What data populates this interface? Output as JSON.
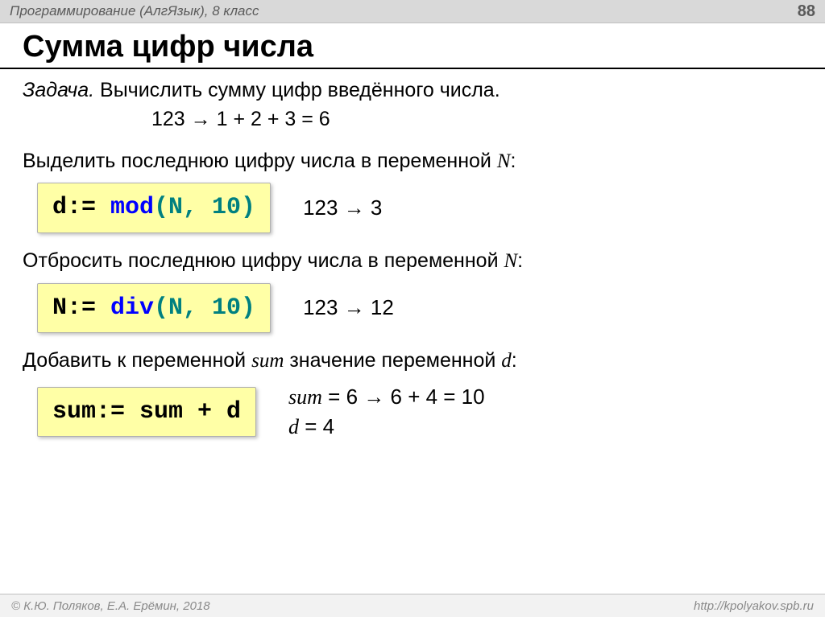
{
  "header": {
    "course": "Программирование (АлгЯзык), 8 класс",
    "page": "88"
  },
  "title": "Сумма цифр числа",
  "task": {
    "label": "Задача.",
    "text": " Вычислить сумму цифр введённого числа.",
    "example_lhs": "123 ",
    "example_rhs": " 1 + 2 + 3 = 6"
  },
  "steps": [
    {
      "text_before": "Выделить последнюю цифру числа в переменной ",
      "var": "N",
      "text_after": ":",
      "code_parts": {
        "lhs": "d:= ",
        "kw": "mod",
        "args": "(N, 10)"
      },
      "kw_color": "blue",
      "result_lhs": "123 ",
      "result_rhs": " 3"
    },
    {
      "text_before": "Отбросить последнюю цифру числа в переменной ",
      "var": "N",
      "text_after": ":",
      "code_parts": {
        "lhs": "N:= ",
        "kw": "div",
        "args": "(N, 10)"
      },
      "kw_color": "blue",
      "result_lhs": "123 ",
      "result_rhs": " 12"
    },
    {
      "text_before": "Добавить к переменной ",
      "var": "sum",
      "text_mid": " значение переменной ",
      "var2": "d",
      "text_after": ":",
      "code_parts": {
        "lhs": "sum:= sum + d",
        "kw": "",
        "args": ""
      },
      "kw_color": "none",
      "result_stack": [
        {
          "var": "sum",
          "eq": " = 6 ",
          "rhs": " 6 + 4 = 10"
        },
        {
          "var": "d",
          "eq": " = 4",
          "rhs": ""
        }
      ]
    }
  ],
  "footer": {
    "left": "© К.Ю. Поляков, Е.А. Ерёмин, 2018",
    "right": "http://kpolyakov.spb.ru"
  },
  "colors": {
    "header_bg": "#d9d9d9",
    "codebox_bg": "#ffffa6",
    "kw_blue": "#0000ff",
    "kw_teal": "#008080",
    "footer_text": "#8a8a8a"
  }
}
